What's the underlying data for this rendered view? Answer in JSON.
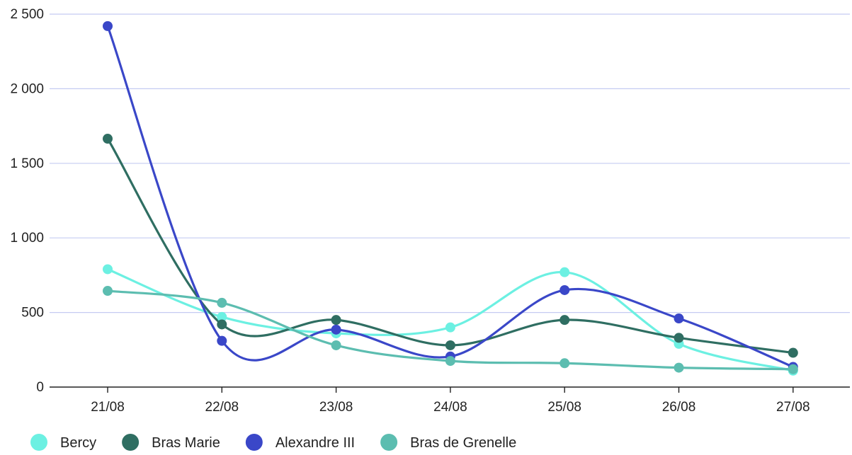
{
  "chart_data": {
    "type": "line",
    "curve": "smooth",
    "categories": [
      "21/08",
      "22/08",
      "23/08",
      "24/08",
      "25/08",
      "26/08",
      "27/08"
    ],
    "ylim": [
      0,
      2500
    ],
    "yticks": [
      0,
      500,
      1000,
      1500,
      2000,
      2500
    ],
    "ytick_labels": [
      "0",
      "500",
      "1 000",
      "1 500",
      "2 000",
      "2 500"
    ],
    "grid": true,
    "legend": "bottom-left",
    "series": [
      {
        "name": "Bercy",
        "color": "#6cf0e2",
        "values": [
          790,
          470,
          360,
          400,
          770,
          290,
          110
        ]
      },
      {
        "name": "Bras Marie",
        "color": "#2f6e62",
        "values": [
          1665,
          420,
          450,
          280,
          450,
          330,
          230
        ]
      },
      {
        "name": "Alexandre III",
        "color": "#3a47c8",
        "values": [
          2420,
          310,
          385,
          205,
          650,
          460,
          135
        ]
      },
      {
        "name": "Bras de Grenelle",
        "color": "#5cbdb0",
        "values": [
          645,
          565,
          280,
          175,
          160,
          130,
          120
        ]
      }
    ],
    "gridline_color": "#c5cbf2",
    "axis_color": "#222222"
  }
}
